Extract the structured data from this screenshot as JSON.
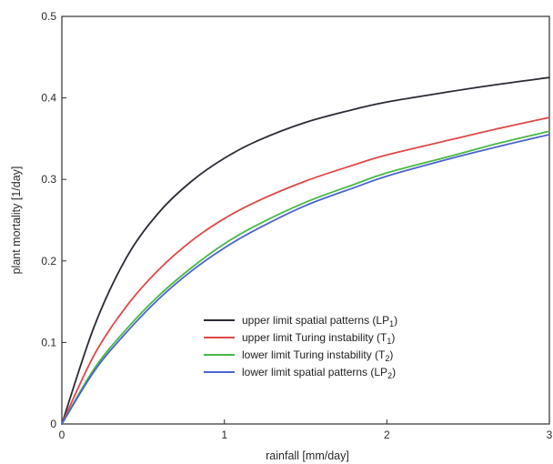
{
  "chart_data": {
    "type": "line",
    "xlabel": "rainfall [mm/day]",
    "ylabel": "plant mortality [1/day]",
    "xlim": [
      0,
      3
    ],
    "ylim": [
      0,
      0.5
    ],
    "x_ticks": [
      "0",
      "1",
      "2",
      "3"
    ],
    "y_ticks": [
      "0",
      "0.1",
      "0.2",
      "0.3",
      "0.4",
      "0.5"
    ],
    "grid": false,
    "legend_position": "bottom-right",
    "x": [
      0,
      0.2,
      0.4,
      0.6,
      0.8,
      1.0,
      1.2,
      1.5,
      1.8,
      2.0,
      2.4,
      2.7,
      3.0
    ],
    "series": [
      {
        "name": "upper limit spatial patterns (LP",
        "subscript": "1",
        "name_suffix": ")",
        "color": "#2b2b36",
        "values": [
          0,
          0.12,
          0.205,
          0.26,
          0.298,
          0.326,
          0.347,
          0.37,
          0.386,
          0.395,
          0.408,
          0.417,
          0.425
        ]
      },
      {
        "name": "upper limit Turing instability (T",
        "subscript": "1",
        "name_suffix": ")",
        "color": "#e04848",
        "values": [
          0,
          0.085,
          0.145,
          0.19,
          0.225,
          0.252,
          0.273,
          0.298,
          0.318,
          0.33,
          0.349,
          0.363,
          0.376
        ]
      },
      {
        "name": "lower limit Turing instability (T",
        "subscript": "2",
        "name_suffix": ")",
        "color": "#48b848",
        "values": [
          0,
          0.068,
          0.117,
          0.158,
          0.192,
          0.221,
          0.244,
          0.272,
          0.294,
          0.308,
          0.329,
          0.345,
          0.359
        ]
      },
      {
        "name": "lower limit spatial patterns (LP",
        "subscript": "2",
        "name_suffix": ")",
        "color": "#4a64d0",
        "values": [
          0,
          0.065,
          0.113,
          0.154,
          0.188,
          0.216,
          0.239,
          0.268,
          0.29,
          0.304,
          0.326,
          0.341,
          0.355
        ]
      }
    ]
  }
}
